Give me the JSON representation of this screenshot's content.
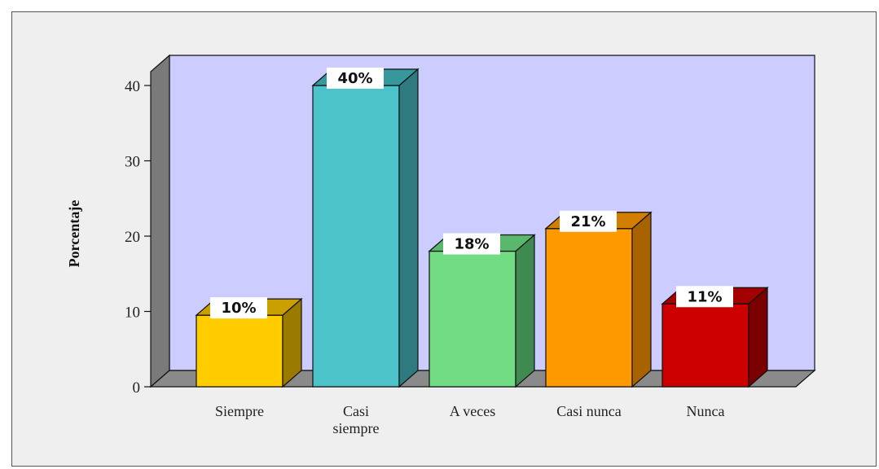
{
  "chart_data": {
    "type": "bar",
    "title": "",
    "xlabel": "",
    "ylabel": "Porcentaje",
    "ylim": [
      0,
      40
    ],
    "yticks": [
      0,
      10,
      20,
      30,
      40
    ],
    "grid": false,
    "legend": "none",
    "categories": [
      "Siempre",
      "Casi siempre",
      "A veces",
      "Casi nunca",
      "Nunca"
    ],
    "category_lines": [
      [
        "Siempre"
      ],
      [
        "Casi",
        "siempre"
      ],
      [
        "A veces"
      ],
      [
        "Casi nunca"
      ],
      [
        "Nunca"
      ]
    ],
    "values": [
      9.5,
      40,
      18,
      21,
      11
    ],
    "data_labels": [
      "10%",
      "40%",
      "18%",
      "21%",
      "11%"
    ],
    "colors": [
      "#FFCC00",
      "#4CC3C8",
      "#72DC84",
      "#FF9900",
      "#CC0000"
    ],
    "side_colors": [
      "#9A7B00",
      "#2E7A7E",
      "#3F8A50",
      "#A86200",
      "#7A0000"
    ],
    "top_colors": [
      "#C9A000",
      "#36989C",
      "#5AB86C",
      "#D27E00",
      "#A30000"
    ],
    "background": "#CCCCFF",
    "wall_color": "#7A7A7A",
    "floor_color": "#8A8A8A"
  }
}
